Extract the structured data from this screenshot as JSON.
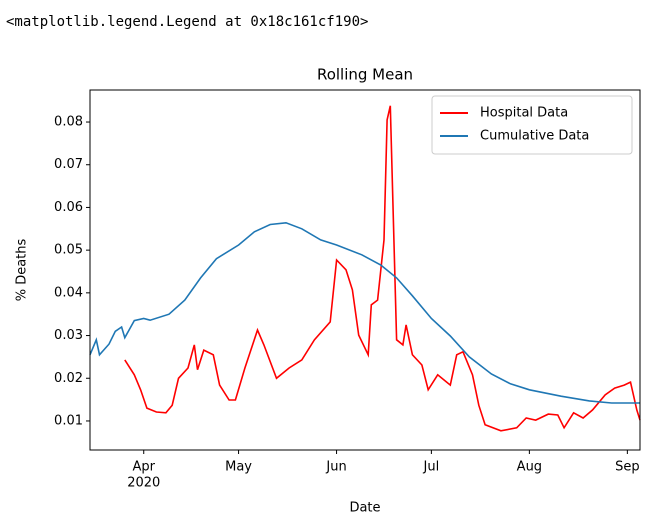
{
  "output_text": "<matplotlib.legend.Legend at 0x18c161cf190>",
  "chart_data": {
    "type": "line",
    "title": "Rolling Mean",
    "x_label": "Date",
    "y_label": "% Deaths",
    "xlim": [
      "2020-03-15",
      "2020-09-05"
    ],
    "xticks": [
      {
        "value": "2020-04-01",
        "label": "Apr"
      },
      {
        "value": "2020-05-01",
        "label": "May"
      },
      {
        "value": "2020-06-01",
        "label": "Jun"
      },
      {
        "value": "2020-07-01",
        "label": "Jul"
      },
      {
        "value": "2020-08-01",
        "label": "Aug"
      },
      {
        "value": "2020-09-01",
        "label": "Sep"
      }
    ],
    "x_tick_sublabel": "2020",
    "ylim": [
      0.0032,
      0.0875
    ],
    "yticks": [
      0.01,
      0.02,
      0.03,
      0.04,
      0.05,
      0.06,
      0.07,
      0.08
    ],
    "grid": false,
    "legend": "upper right",
    "series": [
      {
        "name": "Hospital Data",
        "color": "#ff0000",
        "x": [
          "2020-03-26",
          "2020-03-29",
          "2020-03-31",
          "2020-04-02",
          "2020-04-05",
          "2020-04-08",
          "2020-04-10",
          "2020-04-12",
          "2020-04-15",
          "2020-04-17",
          "2020-04-18",
          "2020-04-20",
          "2020-04-23",
          "2020-04-25",
          "2020-04-28",
          "2020-04-30",
          "2020-05-03",
          "2020-05-07",
          "2020-05-09",
          "2020-05-13",
          "2020-05-17",
          "2020-05-21",
          "2020-05-25",
          "2020-05-30",
          "2020-06-01",
          "2020-06-04",
          "2020-06-06",
          "2020-06-08",
          "2020-06-11",
          "2020-06-12",
          "2020-06-14",
          "2020-06-16",
          "2020-06-17",
          "2020-06-18",
          "2020-06-20",
          "2020-06-22",
          "2020-06-23",
          "2020-06-25",
          "2020-06-28",
          "2020-06-30",
          "2020-07-03",
          "2020-07-07",
          "2020-07-09",
          "2020-07-11",
          "2020-07-14",
          "2020-07-16",
          "2020-07-18",
          "2020-07-23",
          "2020-07-28",
          "2020-07-31",
          "2020-08-03",
          "2020-08-07",
          "2020-08-10",
          "2020-08-12",
          "2020-08-15",
          "2020-08-18",
          "2020-08-21",
          "2020-08-25",
          "2020-08-28",
          "2020-08-31",
          "2020-09-02",
          "2020-09-04",
          "2020-09-05"
        ],
        "values": [
          0.0243,
          0.0208,
          0.0173,
          0.013,
          0.0121,
          0.0119,
          0.0137,
          0.02,
          0.0224,
          0.0278,
          0.022,
          0.0266,
          0.0255,
          0.0184,
          0.0149,
          0.0149,
          0.0224,
          0.0313,
          0.0278,
          0.02,
          0.0224,
          0.0243,
          0.029,
          0.0332,
          0.0477,
          0.0454,
          0.0407,
          0.0301,
          0.0255,
          0.0372,
          0.0383,
          0.0524,
          0.0805,
          0.0838,
          0.029,
          0.0278,
          0.0325,
          0.0255,
          0.0231,
          0.0173,
          0.0208,
          0.0184,
          0.0255,
          0.0262,
          0.0208,
          0.0137,
          0.0091,
          0.0077,
          0.0084,
          0.0107,
          0.0102,
          0.0116,
          0.0114,
          0.0084,
          0.0119,
          0.0107,
          0.0126,
          0.0161,
          0.0177,
          0.0184,
          0.0191,
          0.0126,
          0.0102
        ]
      },
      {
        "name": "Cumulative Data",
        "color": "#1f77b4",
        "x": [
          "2020-03-15",
          "2020-03-17",
          "2020-03-18",
          "2020-03-21",
          "2020-03-23",
          "2020-03-25",
          "2020-03-26",
          "2020-03-29",
          "2020-04-01",
          "2020-04-03",
          "2020-04-09",
          "2020-04-14",
          "2020-04-19",
          "2020-04-24",
          "2020-05-01",
          "2020-05-06",
          "2020-05-11",
          "2020-05-16",
          "2020-05-21",
          "2020-05-27",
          "2020-06-01",
          "2020-06-09",
          "2020-06-15",
          "2020-06-20",
          "2020-06-25",
          "2020-07-01",
          "2020-07-07",
          "2020-07-13",
          "2020-07-20",
          "2020-07-26",
          "2020-08-01",
          "2020-08-11",
          "2020-08-20",
          "2020-08-27",
          "2020-09-05"
        ],
        "values": [
          0.0255,
          0.029,
          0.0255,
          0.028,
          0.031,
          0.032,
          0.0295,
          0.0335,
          0.034,
          0.0336,
          0.035,
          0.0383,
          0.0435,
          0.048,
          0.0512,
          0.0543,
          0.056,
          0.0564,
          0.055,
          0.0524,
          0.0512,
          0.0489,
          0.0465,
          0.0435,
          0.0393,
          0.034,
          0.0299,
          0.025,
          0.021,
          0.0187,
          0.0173,
          0.0158,
          0.0147,
          0.0142,
          0.0142
        ]
      }
    ]
  }
}
